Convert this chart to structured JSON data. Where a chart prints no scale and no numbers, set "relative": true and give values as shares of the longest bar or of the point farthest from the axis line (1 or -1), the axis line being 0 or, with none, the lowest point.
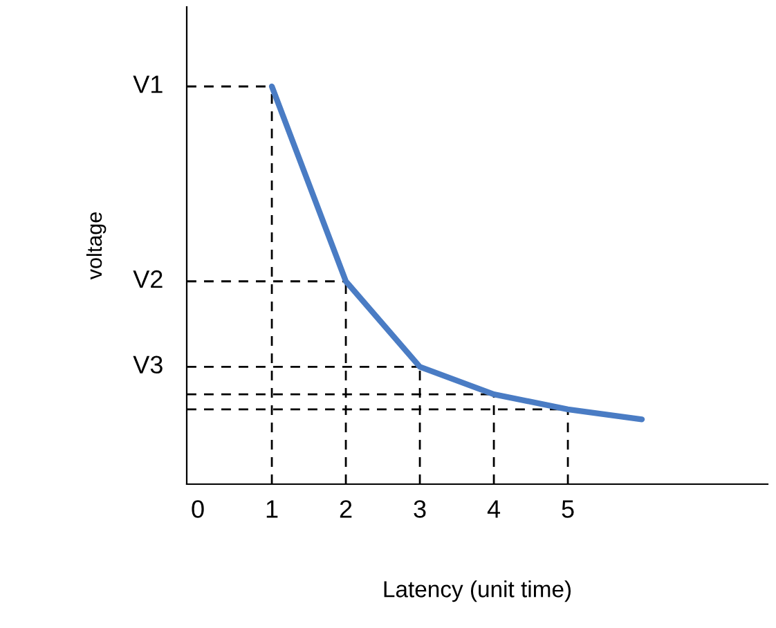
{
  "chart_data": {
    "type": "line",
    "xlabel": "Latency (unit time)",
    "ylabel": "voltage",
    "relative": true,
    "x": [
      1,
      2,
      3,
      4,
      5,
      6
    ],
    "series": [
      {
        "color": "#4a7cc4",
        "values": [
          1,
          0.51,
          0.295,
          0.226,
          0.188,
          0.163
        ]
      }
    ],
    "xlim": [
      -0.15,
      7.7
    ],
    "xticks": [
      0,
      1,
      2,
      3,
      4,
      5
    ],
    "ref_lines": [
      {
        "axis": "y",
        "value": 1,
        "label": "V1",
        "line_style": "dashed",
        "color": "#000000"
      },
      {
        "axis": "y",
        "value": 0.51,
        "label": "V2",
        "line_style": "dashed",
        "color": "#000000"
      },
      {
        "axis": "y",
        "value": 0.295,
        "label": "V3",
        "line_style": "dashed",
        "color": "#000000"
      },
      {
        "axis": "y",
        "value": 0.226,
        "line_style": "dashed",
        "color": "#000000"
      },
      {
        "axis": "y",
        "value": 0.188,
        "line_style": "dashed",
        "color": "#000000"
      },
      {
        "axis": "x",
        "value": 1,
        "line_style": "dashed",
        "color": "#000000"
      },
      {
        "axis": "x",
        "value": 2,
        "line_style": "dashed",
        "color": "#000000"
      },
      {
        "axis": "x",
        "value": 3,
        "line_style": "dashed",
        "color": "#000000"
      },
      {
        "axis": "x",
        "value": 4,
        "line_style": "dashed",
        "color": "#000000"
      },
      {
        "axis": "x",
        "value": 5,
        "line_style": "dashed",
        "color": "#000000"
      }
    ],
    "grid": false,
    "legend": false,
    "marker": "none",
    "line_style": "solid"
  }
}
